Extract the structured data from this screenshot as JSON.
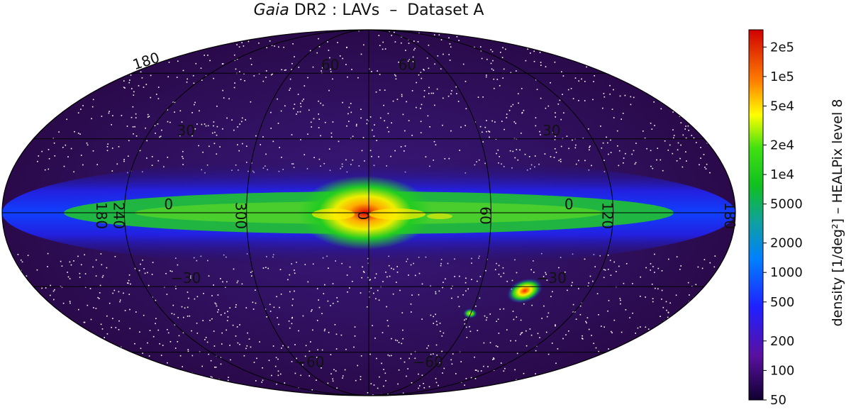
{
  "title": {
    "italic_part": "Gaia",
    "rest": " DR2 : LAVs  –  Dataset A"
  },
  "map": {
    "projection": "Mollweide",
    "coordinate_system": "Galactic",
    "longitude_labels": [
      "180",
      "120",
      "60",
      "0",
      "300",
      "240",
      "180"
    ],
    "latitude_labels_left": [
      "30",
      "0",
      "−30"
    ],
    "latitude_labels_right": [
      "30",
      "0",
      "−30"
    ],
    "latitude_labels_top": [
      "60",
      "60"
    ],
    "latitude_labels_bottom": [
      "−60",
      "−60"
    ],
    "top_edge_label": "180",
    "colors": {
      "low": "#2a0a4a",
      "plane": "#1e2cff",
      "mid": "#1fd21f",
      "high": "#ffee00",
      "peak": "#dd0000",
      "outliers": "#ffffff"
    }
  },
  "colorbar": {
    "label": "density [1/deg²]  –  HEALPix level 8",
    "scale": "log",
    "range": [
      50,
      300000
    ],
    "ticks": [
      "2e5",
      "1e5",
      "5e4",
      "2e4",
      "1e4",
      "5000",
      "2000",
      "1000",
      "500",
      "200",
      "100",
      "50"
    ],
    "tick_values": [
      200000,
      100000,
      50000,
      20000,
      10000,
      5000,
      2000,
      1000,
      500,
      200,
      100,
      50
    ]
  }
}
